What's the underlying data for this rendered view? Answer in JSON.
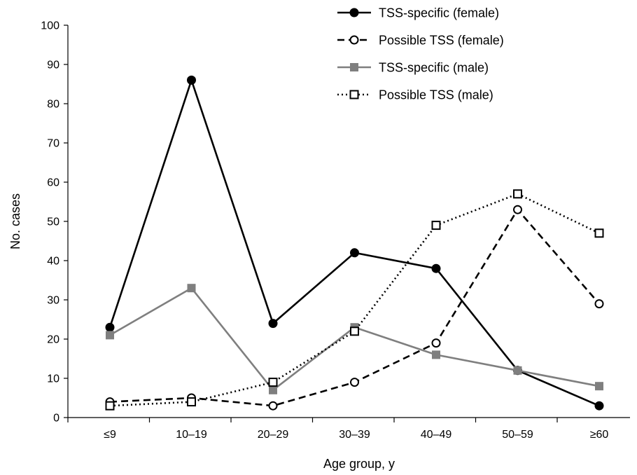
{
  "chart_data": {
    "type": "line",
    "title": "",
    "xlabel": "Age group, y",
    "ylabel": "No. cases",
    "categories": [
      "≤9",
      "10–19",
      "20–29",
      "30–39",
      "40–49",
      "50–59",
      "≥60"
    ],
    "ylim": [
      0,
      100
    ],
    "yticks": [
      0,
      10,
      20,
      30,
      40,
      50,
      60,
      70,
      80,
      90,
      100
    ],
    "grid": false,
    "legend_position": "top-right",
    "series": [
      {
        "name": "TSS-specific (female)",
        "values": [
          23,
          86,
          24,
          42,
          38,
          12,
          3
        ],
        "color": "#000000",
        "line": "solid",
        "marker": "circle-filled"
      },
      {
        "name": "Possible TSS (female)",
        "values": [
          4,
          5,
          3,
          9,
          19,
          53,
          29
        ],
        "color": "#000000",
        "line": "dashed",
        "marker": "circle-open"
      },
      {
        "name": "TSS-specific (male)",
        "values": [
          21,
          33,
          7,
          23,
          16,
          12,
          8
        ],
        "color": "#7f7f7f",
        "line": "solid",
        "marker": "square-filled"
      },
      {
        "name": "Possible TSS (male)",
        "values": [
          3,
          4,
          9,
          22,
          49,
          57,
          47
        ],
        "color": "#000000",
        "line": "dotted",
        "marker": "square-open"
      }
    ]
  }
}
